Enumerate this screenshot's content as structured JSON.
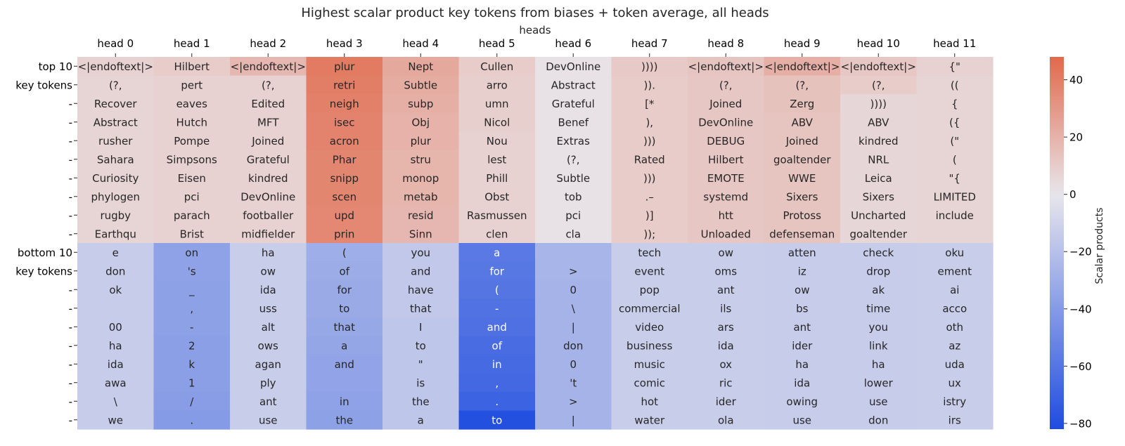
{
  "chart_data": {
    "type": "heatmap",
    "title": "Highest scalar product key tokens from biases + token average, all heads",
    "xlabel": "heads",
    "colorbar_label": "Scalar products",
    "colorbar_range": [
      -82,
      48
    ],
    "colorbar_ticks": [
      40,
      20,
      0,
      -20,
      -40,
      -60,
      -80
    ],
    "colorbar_tick_labels": [
      "40",
      "20",
      "0",
      "−20",
      "−40",
      "−60",
      "−80"
    ],
    "colormap": {
      "low": "#1f4ce0",
      "mid": "#e8e6ec",
      "high": "#e2694b"
    },
    "columns": [
      "head 0",
      "head 1",
      "head 2",
      "head 3",
      "head 4",
      "head 5",
      "head 6",
      "head 7",
      "head 8",
      "head 9",
      "head 10",
      "head 11"
    ],
    "row_labels": [
      "top 10",
      "key tokens",
      "-",
      "-",
      "-",
      "-",
      "-",
      "-",
      "-",
      "-",
      "bottom 10",
      "key tokens",
      "-",
      "-",
      "-",
      "-",
      "-",
      "-",
      "-",
      "-"
    ],
    "cell_tokens": [
      [
        "<|endoftext|>",
        "Hilbert",
        "<|endoftext|>",
        "plur",
        "Nept",
        "Cullen",
        "DevOnline",
        "))))",
        "<|endoftext|>",
        "<|endoftext|>",
        "<|endoftext|>",
        "{\""
      ],
      [
        "(?,",
        "pert",
        "(?,",
        "retri",
        "Subtle",
        "arro",
        "Abstract",
        ")).",
        "(?,",
        "(?,",
        "(?,",
        "(("
      ],
      [
        "Recover",
        "eaves",
        "Edited",
        "neigh",
        "subp",
        "umn",
        "Grateful",
        "[*",
        "Joined",
        "Zerg",
        "))))",
        "{"
      ],
      [
        "Abstract",
        "Hutch",
        "MFT",
        "isec",
        "Obj",
        "Nicol",
        "Benef",
        "),",
        "DevOnline",
        "ABV",
        "ABV",
        "({"
      ],
      [
        "rusher",
        "Pompe",
        "Joined",
        "acron",
        "plur",
        "Nou",
        "Extras",
        ")))",
        "DEBUG",
        "Joined",
        "kindred",
        "(\""
      ],
      [
        "Sahara",
        "Simpsons",
        "Grateful",
        "Phar",
        "stru",
        "lest",
        "(?,",
        "Rated",
        "Hilbert",
        "goaltender",
        "NRL",
        "("
      ],
      [
        "Curiosity",
        "Eisen",
        "kindred",
        "snipp",
        "monop",
        "Phill",
        "Subtle",
        ")))",
        "EMOTE",
        "WWE",
        "Leica",
        "\"{"
      ],
      [
        "phylogen",
        "pci",
        "DevOnline",
        "scen",
        "metab",
        "Obst",
        "tob",
        ".–",
        "systemd",
        "Sixers",
        "Sixers",
        "LIMITED"
      ],
      [
        "rugby",
        "parach",
        "footballer",
        "upd",
        "resid",
        "Rasmussen",
        "pci",
        ")]",
        "htt",
        "Protoss",
        "Uncharted",
        "include"
      ],
      [
        "Earthqu",
        "Brist",
        "midfielder",
        "prin",
        "Sinn",
        "clen",
        "cla",
        "));",
        "Unloaded",
        "defenseman",
        "goaltender",
        ""
      ],
      [
        "e",
        "on",
        "ha",
        "(",
        "you",
        "a",
        "",
        "tech",
        "ow",
        "atten",
        "check",
        "oku"
      ],
      [
        "don",
        "'s",
        "ow",
        "of",
        "and",
        "for",
        ">",
        "event",
        "oms",
        "iz",
        "drop",
        "ement"
      ],
      [
        "ok",
        "_",
        "ida",
        "for",
        "have",
        "(",
        "0",
        "pop",
        "ant",
        "ow",
        "ak",
        "ai"
      ],
      [
        "",
        ",",
        "uss",
        "to",
        "that",
        "-",
        "\\",
        "commercial",
        "ils",
        "bs",
        "time",
        "acco"
      ],
      [
        "00",
        "-",
        "alt",
        "that",
        "I",
        "and",
        "|",
        "video",
        "ars",
        "ant",
        "you",
        "oth"
      ],
      [
        "ha",
        "2",
        "ows",
        "a",
        "to",
        "of",
        "don",
        "business",
        "ida",
        "ider",
        "link",
        "az"
      ],
      [
        "ida",
        "k",
        "agan",
        "and",
        "\"",
        "in",
        "0",
        "music",
        "ox",
        "ha",
        "ha",
        "uda"
      ],
      [
        "awa",
        "1",
        "ply",
        "",
        "is",
        ",",
        "'t",
        "comic",
        "ric",
        "ida",
        "lower",
        "ux"
      ],
      [
        "\\",
        "/",
        "ant",
        "in",
        "the",
        ".",
        ">",
        "hot",
        "ider",
        "owing",
        "use",
        "istry"
      ],
      [
        "we",
        ".",
        "use",
        "the",
        "a",
        "to",
        "|",
        "water",
        "ola",
        "use",
        "don",
        "irs"
      ]
    ],
    "values": [
      [
        8,
        10,
        18,
        41,
        24,
        10,
        2,
        11,
        13,
        21,
        12,
        8
      ],
      [
        7,
        8,
        8,
        40,
        22,
        9,
        2,
        10,
        12,
        14,
        10,
        7
      ],
      [
        7,
        8,
        8,
        39,
        21,
        9,
        2,
        10,
        12,
        14,
        6,
        7
      ],
      [
        7,
        8,
        8,
        38,
        20,
        9,
        2,
        10,
        12,
        13,
        6,
        7
      ],
      [
        7,
        8,
        8,
        38,
        20,
        8,
        2,
        10,
        12,
        13,
        6,
        7
      ],
      [
        7,
        8,
        8,
        37,
        19,
        8,
        2,
        10,
        12,
        13,
        6,
        7
      ],
      [
        7,
        8,
        8,
        37,
        19,
        8,
        2,
        10,
        12,
        13,
        6,
        7
      ],
      [
        7,
        8,
        8,
        37,
        19,
        8,
        2,
        10,
        12,
        13,
        6,
        7
      ],
      [
        7,
        8,
        8,
        36,
        18,
        8,
        2,
        10,
        12,
        13,
        6,
        7
      ],
      [
        7,
        8,
        8,
        36,
        18,
        8,
        2,
        10,
        12,
        13,
        6,
        7
      ],
      [
        -14,
        -36,
        -13,
        -30,
        -16,
        -58,
        -26,
        -13,
        -13,
        -14,
        -14,
        -13
      ],
      [
        -14,
        -36,
        -13,
        -31,
        -16,
        -59,
        -26,
        -13,
        -13,
        -14,
        -14,
        -13
      ],
      [
        -14,
        -37,
        -13,
        -32,
        -16,
        -60,
        -27,
        -13,
        -13,
        -14,
        -14,
        -13
      ],
      [
        -14,
        -37,
        -13,
        -32,
        -16,
        -62,
        -27,
        -13,
        -13,
        -14,
        -14,
        -13
      ],
      [
        -14,
        -37,
        -13,
        -33,
        -17,
        -63,
        -27,
        -13,
        -13,
        -14,
        -14,
        -13
      ],
      [
        -14,
        -38,
        -13,
        -34,
        -17,
        -65,
        -27,
        -13,
        -13,
        -14,
        -14,
        -13
      ],
      [
        -14,
        -38,
        -13,
        -35,
        -17,
        -66,
        -27,
        -13,
        -13,
        -14,
        -14,
        -13
      ],
      [
        -14,
        -38,
        -13,
        -35,
        -17,
        -67,
        -27,
        -13,
        -13,
        -14,
        -14,
        -13
      ],
      [
        -14,
        -39,
        -13,
        -36,
        -17,
        -70,
        -27,
        -13,
        -13,
        -14,
        -14,
        -13
      ],
      [
        -14,
        -40,
        -13,
        -37,
        -17,
        -80,
        -27,
        -13,
        -13,
        -14,
        -14,
        -13
      ]
    ]
  }
}
